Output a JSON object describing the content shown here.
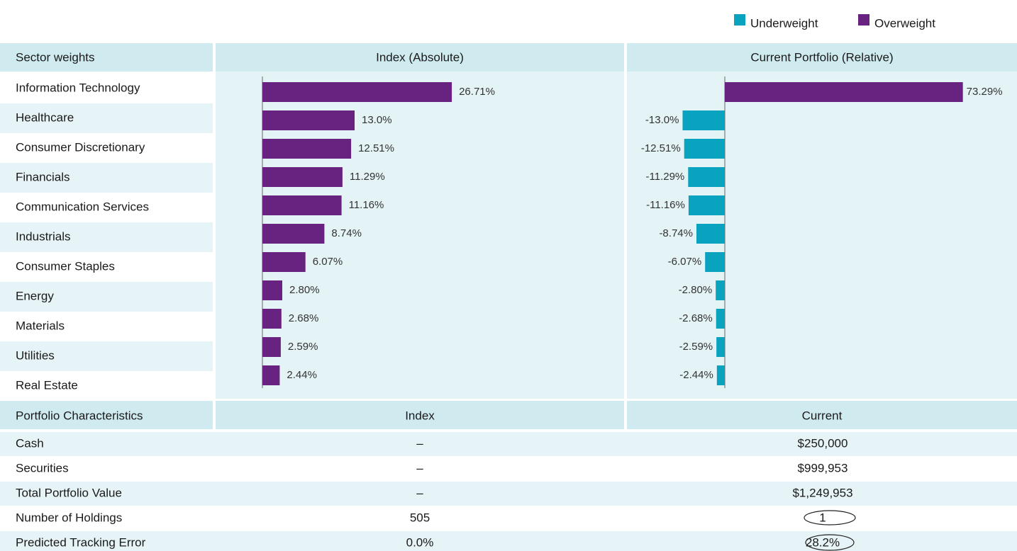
{
  "legend": [
    {
      "name": "Underweight",
      "color": "#0aa3bf"
    },
    {
      "name": "Overweight",
      "color": "#68227f"
    }
  ],
  "sector_table": {
    "headers": [
      "Sector weights",
      "Index (Absolute)",
      "Current Portfolio (Relative)"
    ]
  },
  "chart_data": [
    {
      "type": "bar",
      "orientation": "horizontal",
      "categories": [
        "Information Technology",
        "Healthcare",
        "Consumer Discretionary",
        "Financials",
        "Communication Services",
        "Industrials",
        "Consumer Staples",
        "Energy",
        "Materials",
        "Utilities",
        "Real Estate"
      ],
      "values": [
        26.71,
        13.0,
        12.51,
        11.29,
        11.16,
        8.74,
        6.07,
        2.8,
        2.68,
        2.59,
        2.44
      ],
      "value_labels": [
        "26.71%",
        "13.0%",
        "12.51%",
        "11.29%",
        "11.16%",
        "8.74%",
        "6.07%",
        "2.80%",
        "2.68%",
        "2.59%",
        "2.44%"
      ],
      "color": "#68227f"
    },
    {
      "type": "bar",
      "orientation": "horizontal",
      "values": [
        73.29,
        -13.0,
        -12.51,
        -11.29,
        -11.16,
        -8.74,
        -6.07,
        -2.8,
        -2.68,
        -2.59,
        -2.44
      ],
      "value_labels": [
        "73.29%",
        "-13.0%",
        "-12.51%",
        "-11.29%",
        "-11.16%",
        "-8.74%",
        "-6.07%",
        "-2.80%",
        "-2.68%",
        "-2.59%",
        "-2.44%"
      ]
    }
  ],
  "characteristics": {
    "headers": [
      "Portfolio Characteristics",
      "Index",
      "Current"
    ],
    "rows": [
      [
        "Cash",
        "–",
        "$250,000"
      ],
      [
        "Securities",
        "–",
        "$999,953"
      ],
      [
        "Total Portfolio Value",
        "–",
        "$1,249,953"
      ],
      [
        "Number of Holdings",
        "505",
        "1"
      ],
      [
        "Predicted Tracking Error",
        "0.0%",
        "28.2%"
      ]
    ]
  }
}
